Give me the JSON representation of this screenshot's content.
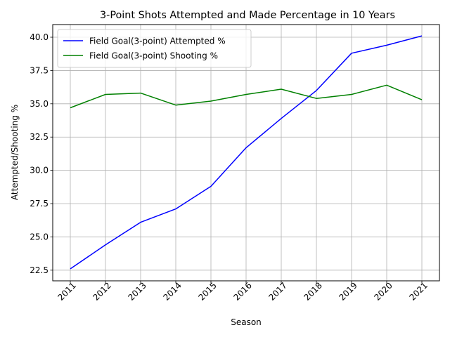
{
  "chart_data": {
    "type": "line",
    "title": "3-Point Shots Attempted and Made Percentage in 10 Years",
    "xlabel": "Season",
    "ylabel": "Attempted/Shooting %",
    "categories": [
      "2011",
      "2012",
      "2013",
      "2014",
      "2015",
      "2016",
      "2017",
      "2018",
      "2019",
      "2020",
      "2021"
    ],
    "yticks": [
      "22.5",
      "25.0",
      "27.5",
      "30.0",
      "32.5",
      "35.0",
      "37.5",
      "40.0"
    ],
    "ylim": [
      21.7,
      40.95
    ],
    "grid": true,
    "legend_position": "upper-left",
    "series": [
      {
        "name": "Field Goal(3-point) Attempted %",
        "color": "#0000ff",
        "values": [
          22.6,
          24.4,
          26.1,
          27.1,
          28.8,
          31.7,
          33.9,
          36.0,
          38.8,
          39.4,
          40.1
        ]
      },
      {
        "name": "Field Goal(3-point) Shooting %",
        "color": "#008000",
        "values": [
          34.7,
          35.7,
          35.8,
          34.9,
          35.2,
          35.7,
          36.1,
          35.4,
          35.7,
          36.4,
          35.3
        ]
      }
    ]
  }
}
